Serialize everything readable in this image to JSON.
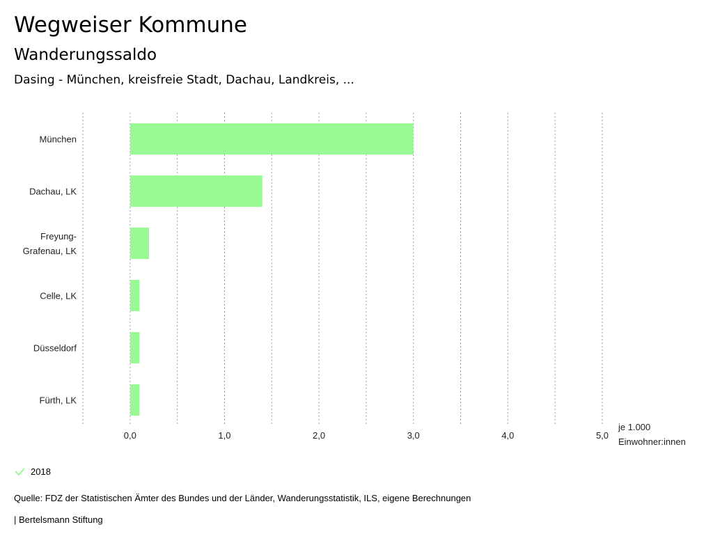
{
  "header": {
    "title": "Wegweiser Kommune",
    "subtitle": "Wanderungssaldo",
    "region": "Dasing - München, kreisfreie Stadt, Dachau, Landkreis, ..."
  },
  "chart_data": {
    "type": "bar",
    "orientation": "horizontal",
    "categories": [
      [
        "München"
      ],
      [
        "Dachau, LK"
      ],
      [
        "Freyung-",
        "Grafenau, LK"
      ],
      [
        "Celle, LK"
      ],
      [
        "Düsseldorf"
      ],
      [
        "Fürth, LK"
      ]
    ],
    "series": [
      {
        "name": "2018",
        "values": [
          3.0,
          1.4,
          0.2,
          0.1,
          0.1,
          0.1
        ],
        "color": "#99f994"
      }
    ],
    "xlim": [
      -0.5,
      5.0
    ],
    "ticks": [
      0,
      1,
      2,
      3,
      4,
      5
    ],
    "tick_labels": [
      "0,0",
      "1,0",
      "2,0",
      "3,0",
      "4,0",
      "5,0"
    ],
    "unit_label": [
      "je 1.000",
      "Einwohner:innen"
    ],
    "grid": true
  },
  "legend": {
    "label": "2018",
    "color": "#99f994"
  },
  "footer": {
    "source": "Quelle: FDZ der Statistischen Ämter des Bundes und der Länder, Wanderungsstatistik, ILS, eigene Berechnungen",
    "publisher": "| Bertelsmann Stiftung"
  }
}
